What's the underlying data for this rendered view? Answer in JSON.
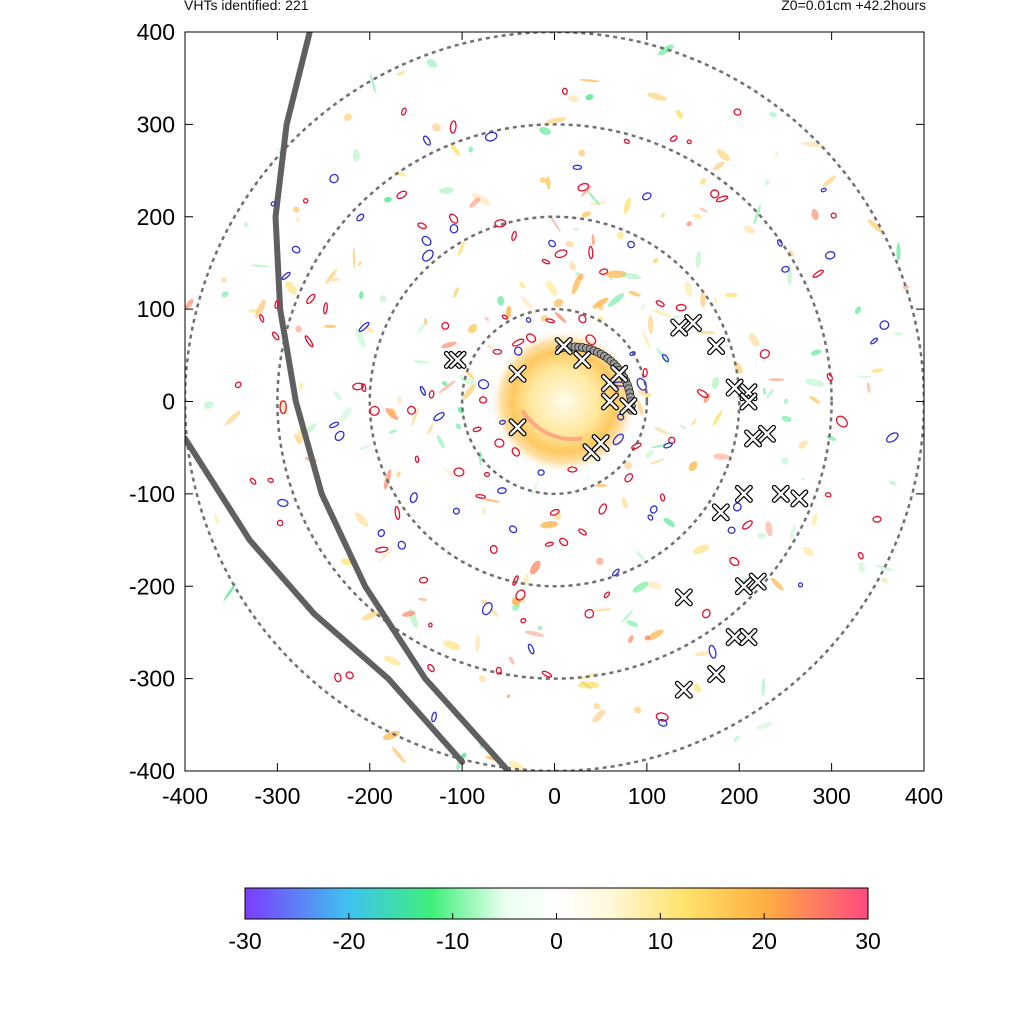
{
  "header": {
    "left_text": "VHTs identified: 221",
    "right_text": "Z0=0.01cm  +42.2hours"
  },
  "colors": {
    "ring": "#707070",
    "track": "#606060",
    "contour_red": "#e01030",
    "contour_blue": "#3030d0",
    "marker_fill": "#ffffff",
    "marker_stroke": "#000000"
  },
  "chart_data": {
    "type": "scatter",
    "xlim": [
      -400,
      400
    ],
    "ylim": [
      -400,
      400
    ],
    "x_ticks": [
      -400,
      -300,
      -200,
      -100,
      0,
      100,
      200,
      300,
      400
    ],
    "y_ticks": [
      -400,
      -300,
      -200,
      -100,
      0,
      100,
      200,
      300,
      400
    ],
    "grid": false,
    "range_rings": [
      100,
      200,
      300,
      400
    ],
    "tracks": [
      [
        [
          -265,
          400
        ],
        [
          -290,
          300
        ],
        [
          -302,
          200
        ],
        [
          -297,
          100
        ],
        [
          -280,
          0
        ],
        [
          -252,
          -100
        ],
        [
          -205,
          -200
        ],
        [
          -140,
          -300
        ],
        [
          -50,
          -400
        ]
      ],
      [
        [
          -400,
          -40
        ],
        [
          -330,
          -150
        ],
        [
          -260,
          -230
        ],
        [
          -180,
          -300
        ],
        [
          -100,
          -390
        ]
      ]
    ],
    "vht_markers": [
      [
        -40,
        30
      ],
      [
        -40,
        -28
      ],
      [
        40,
        -55
      ],
      [
        50,
        -45
      ],
      [
        60,
        20
      ],
      [
        70,
        30
      ],
      [
        60,
        0
      ],
      [
        80,
        -5
      ],
      [
        10,
        60
      ],
      [
        30,
        45
      ],
      [
        -110,
        45
      ],
      [
        -105,
        45
      ],
      [
        135,
        80
      ],
      [
        150,
        85
      ],
      [
        175,
        60
      ],
      [
        195,
        15
      ],
      [
        210,
        10
      ],
      [
        210,
        0
      ],
      [
        215,
        -40
      ],
      [
        230,
        -35
      ],
      [
        180,
        -120
      ],
      [
        205,
        -100
      ],
      [
        245,
        -100
      ],
      [
        265,
        -105
      ],
      [
        140,
        -212
      ],
      [
        205,
        -200
      ],
      [
        220,
        -195
      ],
      [
        195,
        -255
      ],
      [
        210,
        -255
      ],
      [
        175,
        -295
      ],
      [
        140,
        -312
      ]
    ],
    "colorbar": {
      "min": -30,
      "max": 30,
      "ticks": [
        -30,
        -20,
        -10,
        0,
        10,
        20,
        30
      ],
      "stops": [
        [
          -30,
          "#7b3cff"
        ],
        [
          -20,
          "#3fc2f0"
        ],
        [
          -12,
          "#3ef07a"
        ],
        [
          -5,
          "#eafff0"
        ],
        [
          0,
          "#ffffff"
        ],
        [
          5,
          "#fff8dc"
        ],
        [
          12,
          "#ffe470"
        ],
        [
          20,
          "#ffb040"
        ],
        [
          30,
          "#ff4a80"
        ]
      ]
    }
  }
}
